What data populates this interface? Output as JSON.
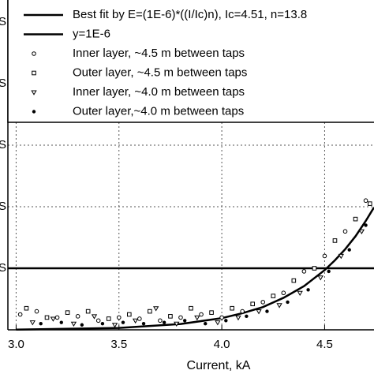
{
  "chart_data": {
    "type": "scatter",
    "x_label": "Current, kA",
    "xlim": [
      2.96,
      4.74
    ],
    "ylim": [
      0,
      5.36
    ],
    "xticks": [
      {
        "value": 3.0,
        "label": "3.0"
      },
      3.5,
      {
        "value": 4.0,
        "label": "4.0"
      },
      4.5
    ],
    "yticks": [
      {
        "value": 1,
        "label": "S"
      },
      {
        "value": 2,
        "label": "S"
      },
      {
        "value": 3,
        "label": "S"
      },
      {
        "value": 4,
        "label": "S"
      },
      {
        "value": 5,
        "label": "S"
      }
    ],
    "grid": true,
    "legend": "top",
    "series": [
      {
        "name": "Best fit by E=(1E-6)*((I/Ic)n), Ic=4.51, n=13.8",
        "kind": "line",
        "color": "#000000",
        "x": [
          3.0,
          3.5,
          3.8,
          4.0,
          4.1,
          4.2,
          4.3,
          4.4,
          4.5,
          4.55,
          4.6,
          4.65,
          4.7,
          4.74
        ],
        "values": [
          0.003,
          0.03,
          0.094,
          0.19,
          0.27,
          0.37,
          0.52,
          0.71,
          0.97,
          1.13,
          1.31,
          1.52,
          1.77,
          1.99
        ]
      },
      {
        "name": "y=1E-6",
        "kind": "line",
        "color": "#000000",
        "x": [
          2.96,
          4.74
        ],
        "values": [
          1,
          1
        ]
      },
      {
        "name": "Inner layer, ~4.5 m between taps",
        "kind": "scatter",
        "marker": "circle",
        "color": "#000000",
        "x": [
          3.02,
          3.1,
          3.2,
          3.3,
          3.4,
          3.5,
          3.6,
          3.7,
          3.8,
          3.9,
          4.0,
          4.1,
          4.2,
          4.3,
          4.4,
          4.5,
          4.6,
          4.7
        ],
        "values": [
          0.25,
          0.3,
          0.2,
          0.22,
          0.15,
          0.2,
          0.18,
          0.15,
          0.2,
          0.25,
          0.2,
          0.3,
          0.45,
          0.6,
          0.95,
          1.2,
          1.6,
          2.1
        ]
      },
      {
        "name": "Outer layer, ~4.5 m between taps",
        "kind": "scatter",
        "marker": "square",
        "color": "#000000",
        "x": [
          3.05,
          3.15,
          3.25,
          3.35,
          3.45,
          3.55,
          3.65,
          3.75,
          3.85,
          3.95,
          4.05,
          4.15,
          4.25,
          4.35,
          4.45,
          4.55,
          4.65,
          4.72
        ],
        "values": [
          0.35,
          0.2,
          0.28,
          0.3,
          0.18,
          0.25,
          0.3,
          0.22,
          0.35,
          0.28,
          0.35,
          0.42,
          0.55,
          0.8,
          1.0,
          1.45,
          1.8,
          2.05
        ]
      },
      {
        "name": "Inner layer, ~4.0 m between taps",
        "kind": "scatter",
        "marker": "triangle",
        "color": "#000000",
        "x": [
          3.08,
          3.18,
          3.28,
          3.38,
          3.48,
          3.58,
          3.68,
          3.78,
          3.88,
          3.98,
          4.08,
          4.18,
          4.28,
          4.38,
          4.48,
          4.58,
          4.68
        ],
        "values": [
          0.12,
          0.18,
          0.1,
          0.22,
          0.08,
          0.15,
          0.35,
          0.1,
          0.2,
          0.12,
          0.2,
          0.3,
          0.4,
          0.6,
          0.85,
          1.2,
          1.6
        ]
      },
      {
        "name": "Outer layer,~4.0 m between taps",
        "kind": "scatter",
        "marker": "dot",
        "color": "#000000",
        "x": [
          3.12,
          3.22,
          3.32,
          3.42,
          3.52,
          3.62,
          3.72,
          3.82,
          3.92,
          4.02,
          4.12,
          4.22,
          4.32,
          4.42,
          4.52,
          4.62,
          4.7
        ],
        "values": [
          0.1,
          0.12,
          0.08,
          0.1,
          0.12,
          0.1,
          0.12,
          0.15,
          0.1,
          0.15,
          0.22,
          0.3,
          0.45,
          0.65,
          0.95,
          1.3,
          1.7
        ]
      }
    ]
  }
}
